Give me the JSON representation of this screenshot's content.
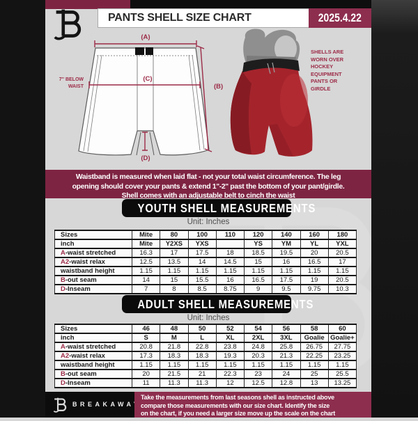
{
  "header": {
    "title": "PANTS SHELL SIZE CHART",
    "date": "2025.4.22"
  },
  "diagram": {
    "label_a": "(A)",
    "label_b": "(B)",
    "label_c": "(C)",
    "label_d": "(D)",
    "below_waist_line1": "7'' BELOW",
    "below_waist_line2": "WAIST",
    "side_note": "SHELLS ARE WORN OVER HOCKEY EQUIPMENT PANTS OR GIRDLE"
  },
  "info_banner": {
    "lines": [
      "Waistband is measured when laid flat - not your total waist circumference. The leg",
      "opening should cover your pants & extend 1''-2'' past the bottom of your pant/girdle.",
      "Shell comes with an adjustable belt to cinch the waist"
    ]
  },
  "youth_section": {
    "title": "YOUTH SHELL MEASUREMENTS",
    "unit": "Unit: Inches",
    "table": {
      "header_rows": [
        {
          "label": "Sizes",
          "values": [
            "Mite",
            "80",
            "100",
            "110",
            "120",
            "140",
            "160",
            "180"
          ]
        },
        {
          "label": "inch",
          "values": [
            "Mite",
            "Y2XS",
            "YXS",
            "",
            "YS",
            "YM",
            "YL",
            "YXL"
          ]
        }
      ],
      "rows": [
        {
          "pre": "A",
          "label": "-waist stretched",
          "values": [
            "16.3",
            "17",
            "17.5",
            "18",
            "18.5",
            "19.5",
            "20",
            "20.5"
          ]
        },
        {
          "pre": "A2",
          "label": "-waist relax",
          "values": [
            "12.5",
            "13.5",
            "14",
            "14.5",
            "15",
            "16",
            "16.5",
            "17"
          ]
        },
        {
          "pre": "",
          "label": "waistband height",
          "values": [
            "1.15",
            "1.15",
            "1.15",
            "1.15",
            "1.15",
            "1.15",
            "1.15",
            "1.15"
          ]
        },
        {
          "pre": "B",
          "label": "-out seam",
          "values": [
            "14",
            "15",
            "15.5",
            "16",
            "16.5",
            "17.5",
            "19",
            "20.5"
          ]
        },
        {
          "pre": "D",
          "label": "-Inseam",
          "values": [
            "7",
            "8",
            "8.5",
            "8.75",
            "9",
            "9.5",
            "9.75",
            "10.3"
          ]
        }
      ]
    }
  },
  "adult_section": {
    "title": "ADULT SHELL MEASUREMENTS",
    "unit": "Unit: Inches",
    "table": {
      "header_rows": [
        {
          "label": "Sizes",
          "values": [
            "46",
            "48",
            "50",
            "52",
            "54",
            "56",
            "58",
            "60"
          ]
        },
        {
          "label": "inch",
          "values": [
            "S",
            "M",
            "L",
            "XL",
            "2XL",
            "3XL",
            "Goalie",
            "Goalie+"
          ]
        }
      ],
      "rows": [
        {
          "pre": "A",
          "label": "-waist stretched",
          "values": [
            "20.8",
            "21.8",
            "22.8",
            "23.8",
            "24.8",
            "25.8",
            "26.75",
            "27.75"
          ]
        },
        {
          "pre": "A2",
          "label": "-waist relax",
          "values": [
            "17.3",
            "18.3",
            "18.3",
            "19.3",
            "20.3",
            "21.3",
            "22.25",
            "23.25"
          ]
        },
        {
          "pre": "",
          "label": "waistband height",
          "values": [
            "1.15",
            "1.15",
            "1.15",
            "1.15",
            "1.15",
            "1.15",
            "1.15",
            "1.15"
          ]
        },
        {
          "pre": "B",
          "label": "-out seam",
          "values": [
            "20",
            "21.5",
            "21",
            "22.3",
            "23",
            "24",
            "25",
            "25.5"
          ]
        },
        {
          "pre": "D",
          "label": "-Inseam",
          "values": [
            "11",
            "11.3",
            "11.3",
            "12",
            "12.5",
            "12.8",
            "13",
            "13.25"
          ]
        }
      ]
    }
  },
  "footer": {
    "brand": "BREAKAWAY",
    "lines": [
      "Take the measurements from last seasons shell as instructed above",
      "compare those measurements  with our size chart. Identify the size",
      "on the chart, if you need a larger size move up the scale on the chart"
    ]
  },
  "colors": {
    "maroon_banner": "#7e2443",
    "maroon_bright": "#8d2e4e",
    "accent_text": "#9c2b47",
    "shell_red": "#a5242c",
    "bar_black": "#131313",
    "background": "#d7d7d7"
  }
}
